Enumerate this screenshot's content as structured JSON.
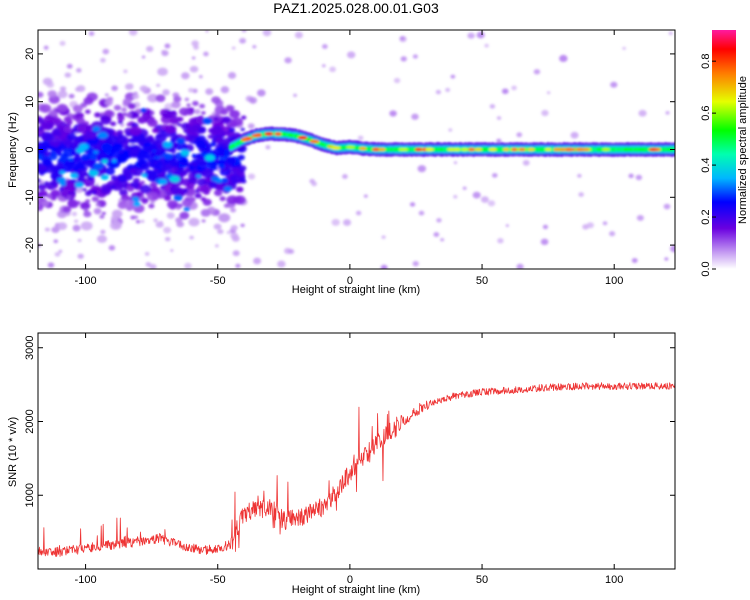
{
  "title": "PAZ1.2025.028.00.01.G03",
  "colors": {
    "snr_line": "#ee3333",
    "frame": "#000000",
    "background": "#ffffff"
  },
  "chart_data": [
    {
      "type": "heatmap",
      "xlabel": "Height of straight line (km)",
      "ylabel": "Frequency (Hz)",
      "xlim": [
        -118,
        123
      ],
      "ylim": [
        -25,
        25
      ],
      "xticks": [
        -100,
        -50,
        0,
        50,
        100
      ],
      "yticks": [
        -20,
        -10,
        0,
        10,
        20
      ],
      "colorbar": {
        "label": "Normalized spectral amplitude",
        "range": [
          0,
          0.92
        ],
        "ticks": [
          0.0,
          0.2,
          0.4,
          0.6,
          0.8
        ],
        "colormap": "rainbow"
      },
      "ridge": {
        "x": [
          -45,
          -40,
          -35,
          -30,
          -25,
          -20,
          -15,
          -10,
          -5,
          0,
          5,
          10,
          20,
          40,
          60,
          80,
          100,
          120
        ],
        "frequency": [
          0.5,
          2.0,
          3.0,
          3.3,
          3.2,
          2.8,
          2.0,
          1.0,
          0.3,
          0.5,
          0.2,
          0.0,
          0.0,
          0.0,
          0.0,
          0.0,
          0.0,
          0.0
        ]
      },
      "noise_cluster": {
        "x_range": [
          -118,
          -40
        ],
        "frequency_range": [
          -15,
          10
        ]
      }
    },
    {
      "type": "line",
      "xlabel": "Height of straight line (km)",
      "ylabel": "SNR (10 * v/v)",
      "xlim": [
        -118,
        123
      ],
      "ylim": [
        0,
        3200
      ],
      "xticks": [
        -100,
        -50,
        0,
        50,
        100
      ],
      "yticks": [
        1000,
        2000,
        3000
      ],
      "series": [
        {
          "x": [
            -118,
            -110,
            -100,
            -90,
            -80,
            -72,
            -65,
            -60,
            -55,
            -50,
            -45,
            -42,
            -40,
            -35,
            -30,
            -25,
            -20,
            -15,
            -10,
            -5,
            0,
            5,
            10,
            15,
            20,
            25,
            30,
            40,
            50,
            60,
            70,
            80,
            90,
            100,
            110,
            120,
            123
          ],
          "y": [
            250,
            230,
            280,
            330,
            370,
            420,
            330,
            280,
            250,
            280,
            330,
            600,
            750,
            800,
            850,
            650,
            700,
            750,
            850,
            1050,
            1300,
            1500,
            1700,
            1850,
            2000,
            2150,
            2250,
            2350,
            2400,
            2420,
            2450,
            2470,
            2480,
            2480,
            2480,
            2480,
            2500
          ]
        }
      ]
    }
  ]
}
